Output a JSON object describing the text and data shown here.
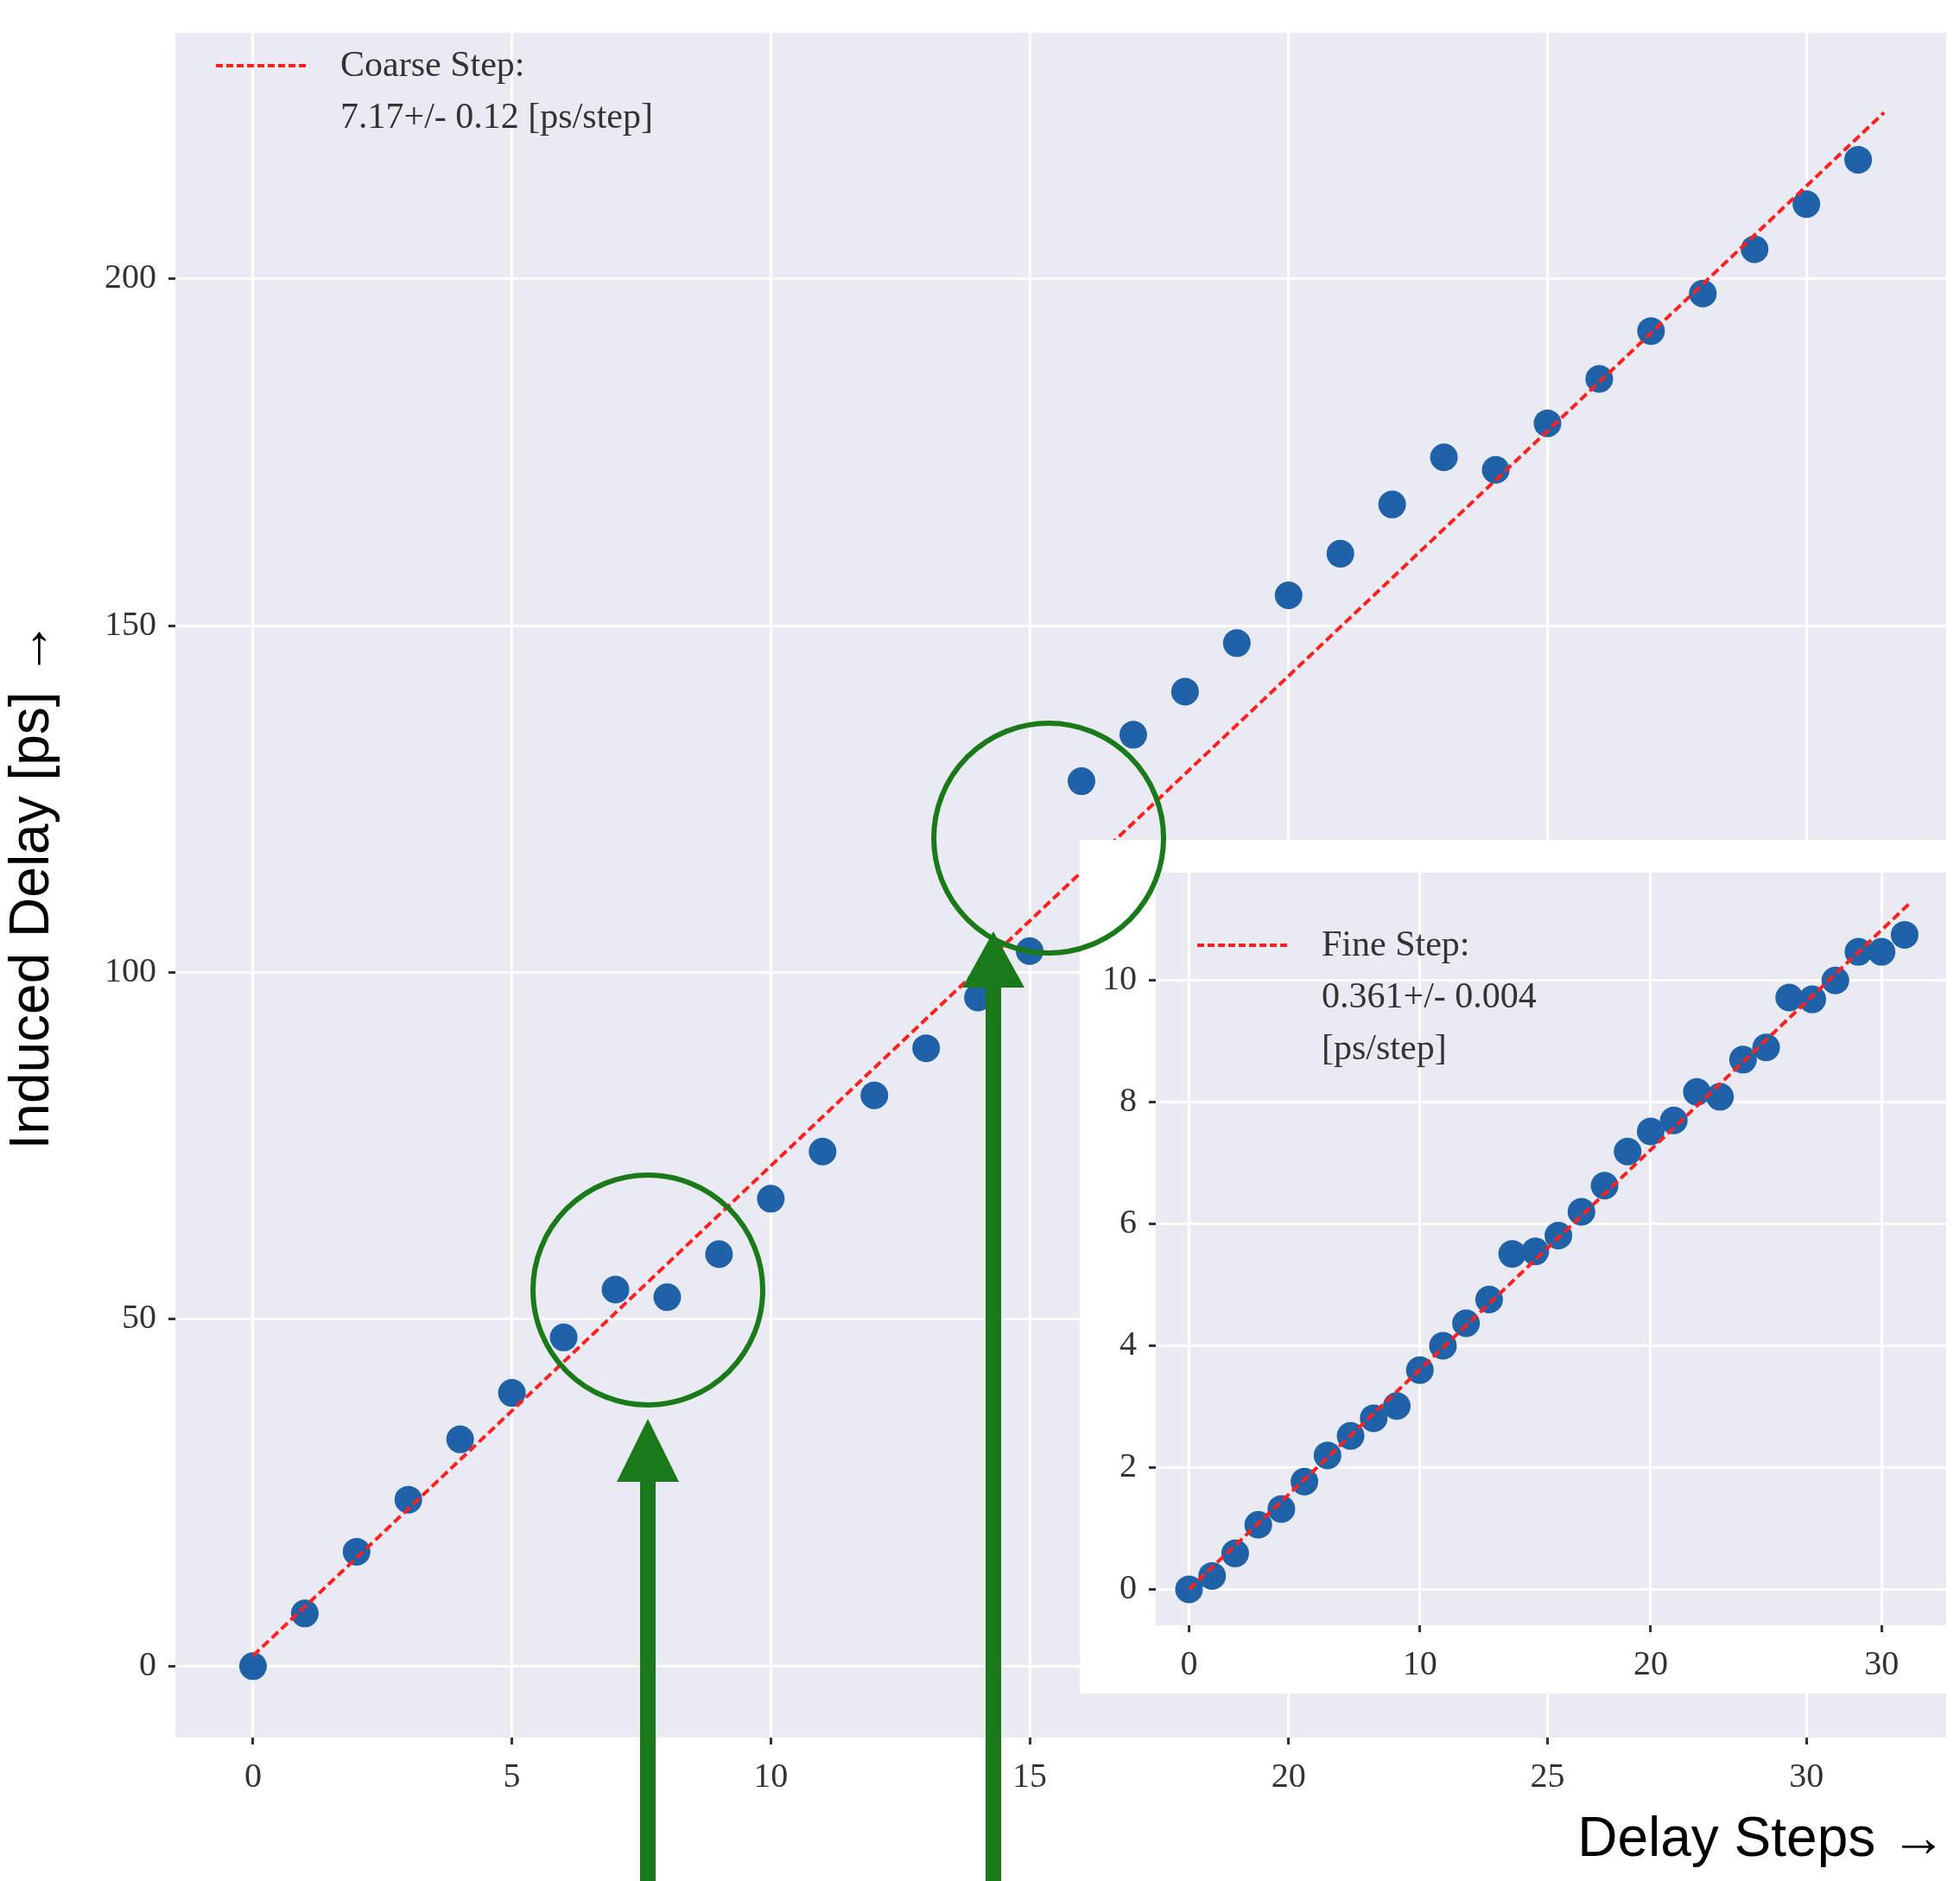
{
  "chart_data": [
    {
      "type": "scatter",
      "xlabel": "Delay Steps →",
      "ylabel": "Induced Delay [ps] →",
      "xlim": [
        -1.5,
        32.7
      ],
      "ylim": [
        -10.3,
        235.5
      ],
      "xticks": [
        0,
        5,
        10,
        15,
        20,
        25,
        30
      ],
      "yticks": [
        0,
        50,
        100,
        150,
        200
      ],
      "grid": true,
      "legend": "top left",
      "marker": "circle",
      "series": [
        {
          "type": "scatter",
          "color": "#1f62a8",
          "x": [
            0,
            1,
            2,
            3,
            4,
            5,
            6,
            7,
            8,
            9,
            10,
            11,
            12,
            13,
            14,
            15,
            16,
            17,
            18,
            19,
            20,
            21,
            22,
            23,
            24,
            25,
            26,
            27,
            28,
            29,
            30,
            31
          ],
          "values": [
            0,
            7.6,
            16.5,
            24,
            32.7,
            39.4,
            47.4,
            54.3,
            53.2,
            59.4,
            67.4,
            74.2,
            82.3,
            89.1,
            96.4,
            103.1,
            127.6,
            134.3,
            140.5,
            147.5,
            154.4,
            160.4,
            167.5,
            174.3,
            172.5,
            179.2,
            185.6,
            192.5,
            197.9,
            204.3,
            210.8,
            217.2
          ]
        },
        {
          "type": "line",
          "name": "Coarse Step: 7.17+/- 0.12 [ps/step]",
          "color": "#ff2020",
          "line_style": "dashed",
          "marker": "none",
          "x": [
            0,
            31.5
          ],
          "values": [
            1.5,
            224
          ]
        }
      ]
    },
    {
      "type": "scatter",
      "xlim": [
        -1.44,
        32.8
      ],
      "ylim": [
        -0.59,
        11.77
      ],
      "xticks": [
        0,
        10,
        20,
        30
      ],
      "yticks": [
        0,
        2,
        4,
        6,
        8,
        10
      ],
      "grid": true,
      "legend": "top left",
      "marker": "circle",
      "series": [
        {
          "type": "scatter",
          "color": "#1f62a8",
          "x": [
            0,
            1,
            2,
            3,
            4,
            5,
            6,
            7,
            8,
            9,
            10,
            11,
            12,
            13,
            14,
            15,
            16,
            17,
            18,
            19,
            20,
            21,
            22,
            23,
            24,
            25,
            26,
            27,
            28,
            29,
            30,
            31
          ],
          "values": [
            0,
            0.22,
            0.59,
            1.06,
            1.32,
            1.77,
            2.2,
            2.52,
            2.81,
            3.01,
            3.6,
            4.0,
            4.37,
            4.76,
            5.51,
            5.55,
            5.81,
            6.2,
            6.63,
            7.19,
            7.52,
            7.7,
            8.17,
            8.09,
            8.7,
            8.9,
            9.72,
            9.69,
            10.0,
            10.47,
            10.47,
            10.75
          ]
        },
        {
          "type": "line",
          "name": "Fine Step: 0.361+/- 0.004 [ps/step]",
          "color": "#ff2020",
          "line_style": "dashed",
          "marker": "none",
          "x": [
            0,
            31.2
          ],
          "values": [
            0,
            11.26
          ]
        }
      ]
    }
  ]
}
